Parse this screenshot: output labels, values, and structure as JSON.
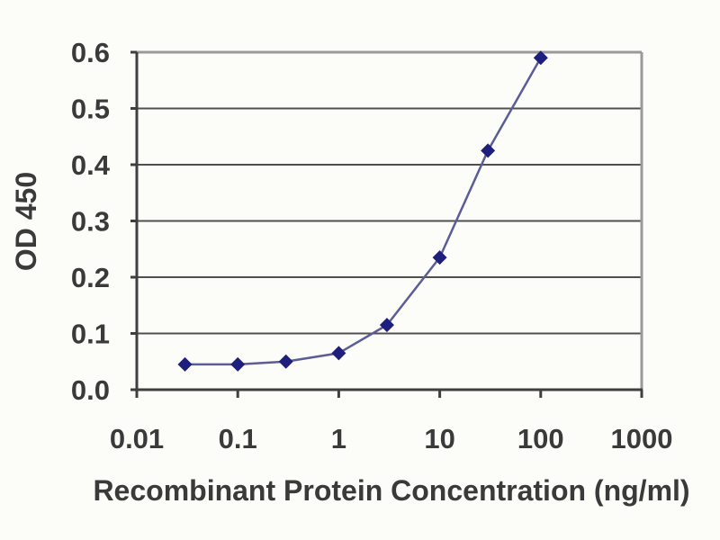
{
  "figure": {
    "background": "#fcfcf9"
  },
  "chart_data": {
    "type": "line",
    "title": "",
    "xlabel": "Recombinant Protein Concentration (ng/ml)",
    "ylabel": "OD 450",
    "xscale": "log",
    "xlim": [
      0.01,
      1000
    ],
    "ylim": [
      0.0,
      0.6
    ],
    "grid": "horizontal",
    "legend": "none",
    "x_ticks": [
      {
        "value": 0.01,
        "label": "0.01"
      },
      {
        "value": 0.1,
        "label": "0.1"
      },
      {
        "value": 1,
        "label": "1"
      },
      {
        "value": 10,
        "label": "10"
      },
      {
        "value": 100,
        "label": "100"
      },
      {
        "value": 1000,
        "label": "1000"
      }
    ],
    "y_ticks": [
      {
        "value": 0.0,
        "label": "0.0"
      },
      {
        "value": 0.1,
        "label": "0.1"
      },
      {
        "value": 0.2,
        "label": "0.2"
      },
      {
        "value": 0.3,
        "label": "0.3"
      },
      {
        "value": 0.4,
        "label": "0.4"
      },
      {
        "value": 0.5,
        "label": "0.5"
      },
      {
        "value": 0.6,
        "label": "0.6"
      }
    ],
    "series": [
      {
        "name": "OD 450",
        "x": [
          0.03,
          0.1,
          0.3,
          1,
          3,
          10,
          30,
          100
        ],
        "y": [
          0.045,
          0.045,
          0.05,
          0.065,
          0.115,
          0.235,
          0.425,
          0.59
        ],
        "marker": "diamond",
        "line_color": "#5c5c99",
        "marker_color": "#1e1e7d"
      }
    ],
    "colors": {
      "grid": "#4f4f4f",
      "frame": "#9a9a9a",
      "axis": "#3f3f3f",
      "text": "#3a3a3a"
    }
  }
}
